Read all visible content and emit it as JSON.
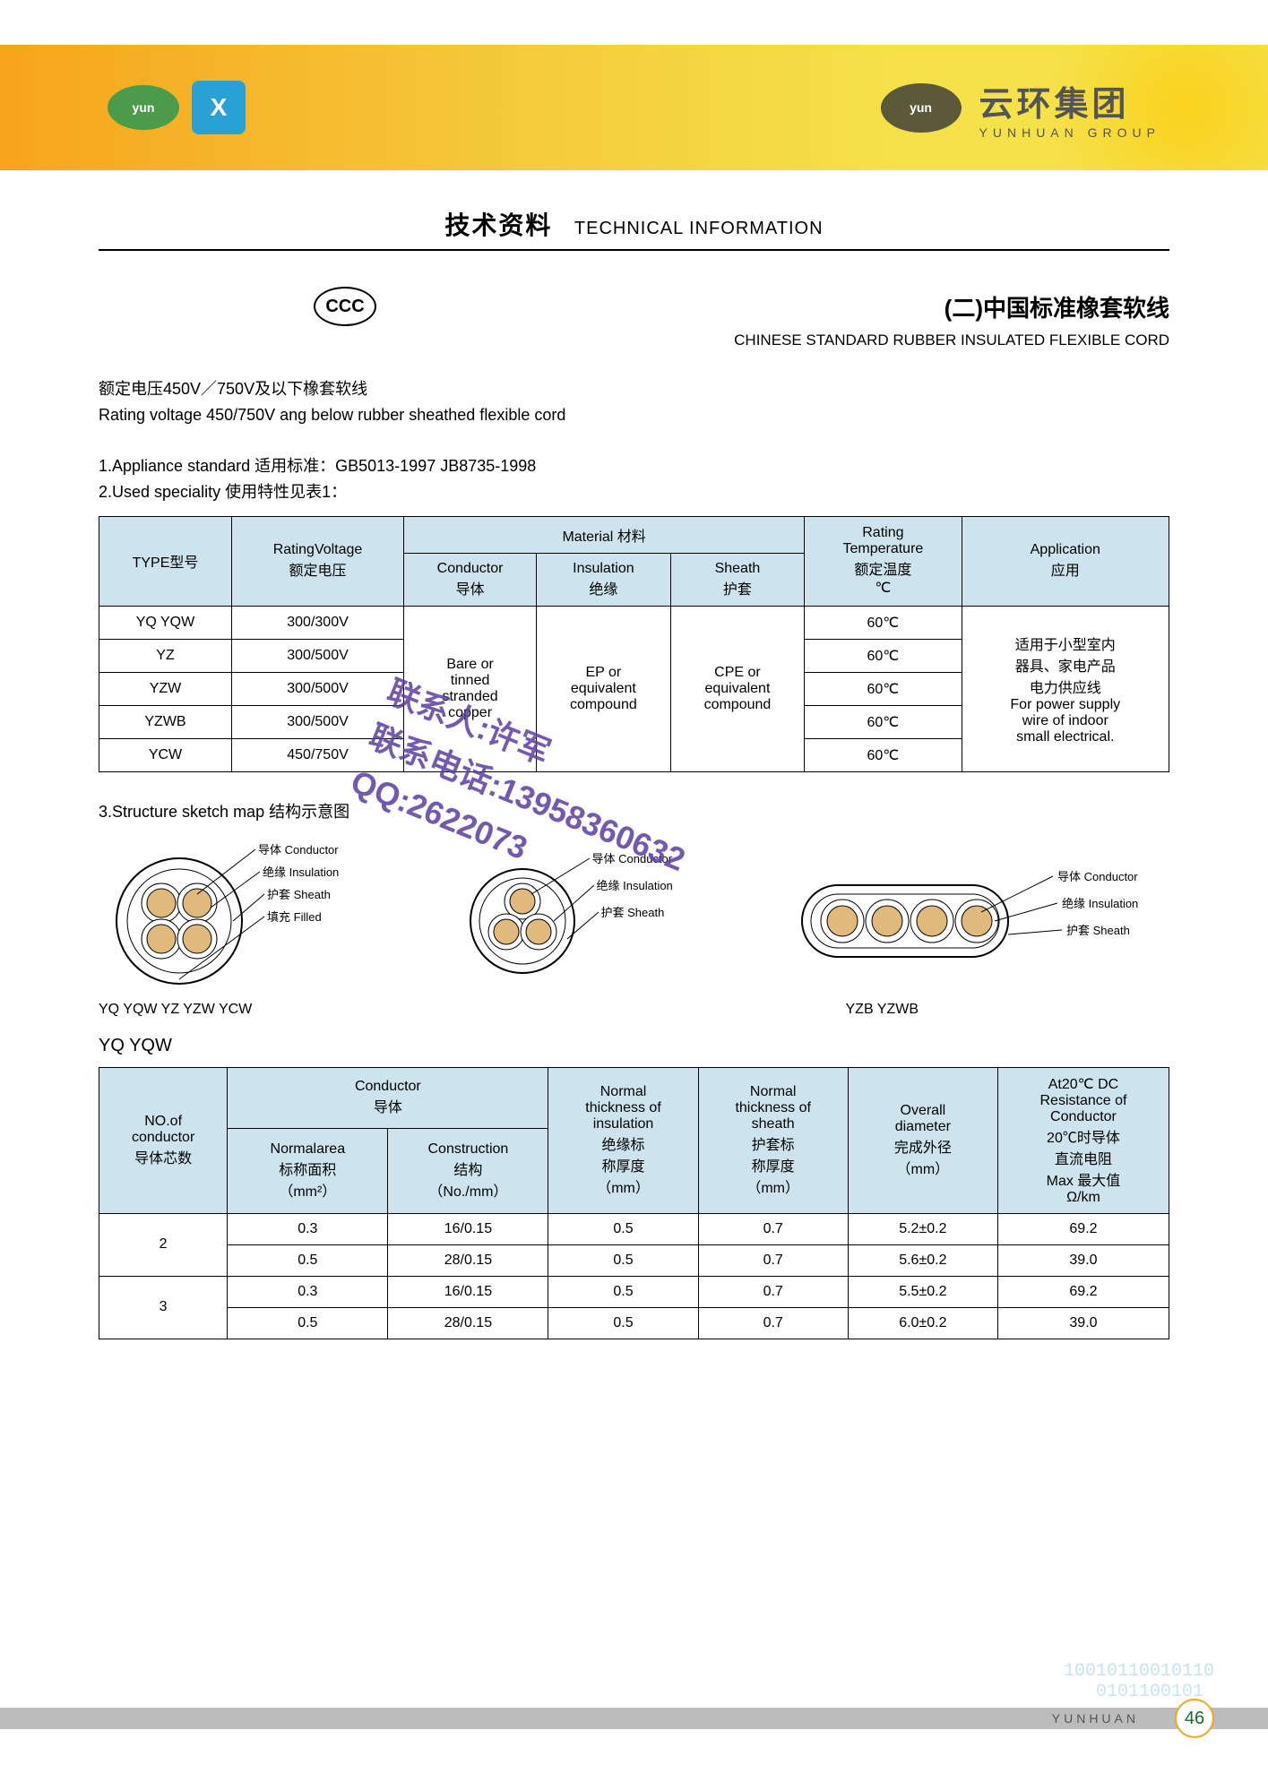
{
  "header": {
    "brand_cn": "云环集团",
    "brand_en": "YUNHUAN GROUP"
  },
  "title": {
    "cn": "技术资料",
    "en": "TECHNICAL INFORMATION"
  },
  "subhead": {
    "ccc": "CCC",
    "cn": "(二)中国标准橡套软线",
    "en": "CHINESE STANDARD RUBBER INSULATED FLEXIBLE CORD"
  },
  "intro": {
    "rating_cn": "额定电压450V／750V及以下橡套软线",
    "rating_en": "Rating voltage 450/750V ang below rubber sheathed flexible cord",
    "line1": "1.Appliance standard 适用标准：GB5013-1997 JB8735-1998",
    "line2": "2.Used speciality 使用特性见表1："
  },
  "table1": {
    "headers": {
      "type": "TYPE型号",
      "rating_voltage": "RatingVoltage\n额定电压",
      "material": "Material 材料",
      "conductor": "Conductor\n导体",
      "insulation": "Insulation\n绝缘",
      "sheath": "Sheath\n护套",
      "rating_temp": "Rating\nTemperature\n额定温度\n℃",
      "application": "Application\n应用"
    },
    "rows": [
      {
        "type": "YQ YQW",
        "voltage": "300/300V",
        "temp": "60℃"
      },
      {
        "type": "YZ",
        "voltage": "300/500V",
        "temp": "60℃"
      },
      {
        "type": "YZW",
        "voltage": "300/500V",
        "temp": "60℃"
      },
      {
        "type": "YZWB",
        "voltage": "300/500V",
        "temp": "60℃"
      },
      {
        "type": "YCW",
        "voltage": "450/750V",
        "temp": "60℃"
      }
    ],
    "conductor_text": "Bare or\ntinned\nstranded\ncopper",
    "insulation_text": "EP or\nequivalent\ncompound",
    "sheath_text": "CPE or\nequivalent\ncompound",
    "application_text": "适用于小型室内\n器具、家电产品\n电力供应线\nFor power supply\nwire of indoor\nsmall electrical."
  },
  "sketch": {
    "title": "3.Structure sketch map 结构示意图",
    "labels": {
      "conductor_cn": "导体",
      "conductor_en": "Conductor",
      "insulation_cn": "绝缘",
      "insulation_en": "Insulation",
      "sheath_cn": "护套",
      "sheath_en": "Sheath",
      "filled_cn": "填充",
      "filled_en": "Filled"
    },
    "caption_left": "YQ YQW YZ YZW YCW",
    "caption_right": "YZB YZWB",
    "colors": {
      "outline": "#000000",
      "sheath_fill": "#ffffff",
      "conductor_fill": "#e0b97d",
      "insulation_fill": "#f2f2f2"
    }
  },
  "yq_title": "YQ YQW",
  "table2": {
    "headers": {
      "no_conductor": "NO.of\nconductor\n导体芯数",
      "conductor": "Conductor\n导体",
      "normal_area": "Normalarea\n标称面积\n（mm²）",
      "construction": "Construction\n结构\n（No./mm）",
      "insul_thick": "Normal\nthickness of\ninsulation\n绝缘标\n称厚度\n（mm）",
      "sheath_thick": "Normal\nthickness of\nsheath\n护套标\n称厚度\n（mm）",
      "overall_diam": "Overall\ndiameter\n完成外径\n（mm）",
      "dc_res": "At20℃ DC\nResistance of\nConductor\n20℃时导体\n直流电阻\nMax 最大值\nΩ/km"
    },
    "rows": [
      {
        "n": "2",
        "area": "0.3",
        "constr": "16/0.15",
        "insul": "0.5",
        "sheath": "0.7",
        "diam": "5.2±0.2",
        "res": "69.2"
      },
      {
        "n": "",
        "area": "0.5",
        "constr": "28/0.15",
        "insul": "0.5",
        "sheath": "0.7",
        "diam": "5.6±0.2",
        "res": "39.0"
      },
      {
        "n": "3",
        "area": "0.3",
        "constr": "16/0.15",
        "insul": "0.5",
        "sheath": "0.7",
        "diam": "5.5±0.2",
        "res": "69.2"
      },
      {
        "n": "",
        "area": "0.5",
        "constr": "28/0.15",
        "insul": "0.5",
        "sheath": "0.7",
        "diam": "6.0±0.2",
        "res": "39.0"
      }
    ]
  },
  "watermark": {
    "line1": "联系人:许军",
    "line2": "联系电话:13958360632",
    "line3": "QQ:2622073"
  },
  "footer": {
    "brand": "YUNHUAN",
    "page": "46"
  }
}
